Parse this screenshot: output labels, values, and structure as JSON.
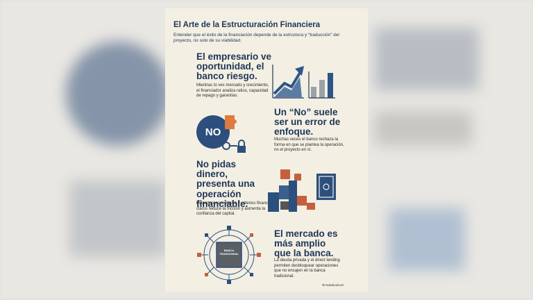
{
  "title": "El Arte de la Estructuración Financiera",
  "subtitle": "Entender que el éxito de la financiación depende de la estructura y “traducción” del proyecto, no solo de su viabilidad.",
  "sections": [
    {
      "heading": "El empresario ve oportunidad, el banco riesgo.",
      "body": "Mientras tú ves mercado y crecimiento, el financiador analiza ratios, capacidad de repago y garantías."
    },
    {
      "heading": "Un “No” suele ser un error de enfoque.",
      "body": "Muchas veces el banco rechaza la forma en que se plantea la operación, no el proyecto en sí."
    },
    {
      "heading": "No pidas dinero, presenta una operación financiable.",
      "body": "Estructurar con lógica y criterios financieros claros reduce la fricción y aumenta la confianza del capital."
    },
    {
      "heading": "El mercado es más amplio que la banca.",
      "body": "La deuda privada y el direct lending permiten desbloquear operaciones que no encajen en la banca tradicional."
    }
  ],
  "icons": {
    "no": "NO",
    "bank": "BANCA TRADICIONAL"
  },
  "footer": "NotebookLM"
}
